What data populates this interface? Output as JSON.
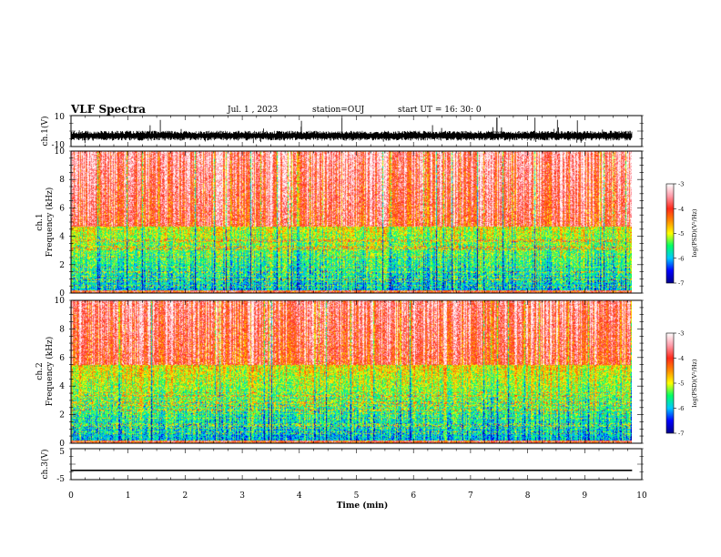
{
  "header": {
    "title": "VLF Spectra",
    "date": "Jul. 1 , 2023",
    "station": "station=OUJ",
    "start": "start UT = 16: 30: 0"
  },
  "chart_data": [
    {
      "type": "line",
      "panel": "ch1-waveform",
      "ylabel": "ch.1(V)",
      "ylim": [
        -10,
        10
      ],
      "yticks": [
        "10",
        "-10"
      ],
      "xlim": [
        0,
        10
      ],
      "x_extent": [
        0,
        9.83
      ],
      "series": [
        {
          "name": "",
          "baseline": -3,
          "spike_min": -8,
          "spike_max": 9
        }
      ]
    },
    {
      "type": "heatmap",
      "panel": "ch1-spectrogram",
      "ylabel": "ch.1\nFrequency (kHz)",
      "ylim": [
        0,
        10
      ],
      "yticks": [
        "0",
        "2",
        "4",
        "6",
        "8",
        "10"
      ],
      "xlim": [
        0,
        10
      ],
      "x_extent": [
        0,
        9.83
      ],
      "colorbar": {
        "label": "log(PSD)(V²/Hz)",
        "range": [
          -7,
          -3
        ],
        "ticks": [
          "-3",
          "-4",
          "-5",
          "-6",
          "-7"
        ],
        "colors": [
          "#00008b",
          "#0000ff",
          "#00c8ff",
          "#00ff66",
          "#ffff00",
          "#ff8c00",
          "#ff2a1a",
          "#ff9aa8",
          "#ffffff"
        ]
      }
    },
    {
      "type": "heatmap",
      "panel": "ch2-spectrogram",
      "ylabel": "ch.2\nFrequency (kHz)",
      "ylim": [
        0,
        10
      ],
      "yticks": [
        "0",
        "2",
        "4",
        "6",
        "8",
        "10"
      ],
      "xlim": [
        0,
        10
      ],
      "x_extent": [
        0,
        9.83
      ],
      "colorbar": {
        "label": "log(PSD)(V²/Hz)",
        "range": [
          -7,
          -3
        ],
        "ticks": [
          "-3",
          "-4",
          "-5",
          "-6",
          "-7"
        ],
        "colors": [
          "#00008b",
          "#0000ff",
          "#00c8ff",
          "#00ff66",
          "#ffff00",
          "#ff8c00",
          "#ff2a1a",
          "#ff9aa8",
          "#ffffff"
        ]
      }
    },
    {
      "type": "line",
      "panel": "ch3-waveform",
      "ylabel": "ch.3(V)",
      "ylim": [
        -5,
        5
      ],
      "yticks": [
        "5",
        "-5"
      ],
      "xlim": [
        0,
        10
      ],
      "x_extent": [
        0,
        9.83
      ],
      "series": [
        {
          "name": "",
          "value": -2
        }
      ]
    }
  ],
  "xaxis": {
    "label": "Time (min)",
    "ticks": [
      "0",
      "1",
      "2",
      "3",
      "4",
      "5",
      "6",
      "7",
      "8",
      "9",
      "10"
    ]
  }
}
